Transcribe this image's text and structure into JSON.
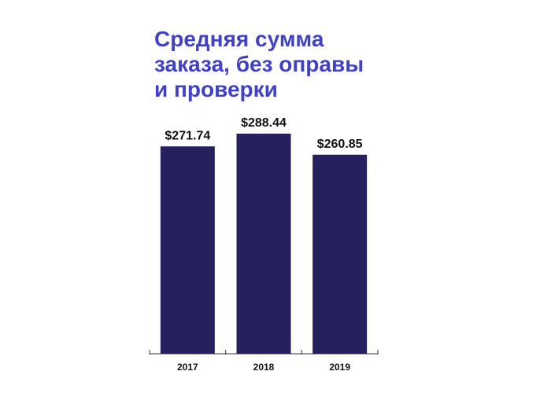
{
  "chart_data": {
    "type": "bar",
    "title": "Средняя сумма заказа, без оправы и проверки",
    "categories": [
      "2017",
      "2018",
      "2019"
    ],
    "values": [
      271.74,
      288.44,
      260.85
    ],
    "value_labels": [
      "$271.74",
      "$288.44",
      "$260.85"
    ],
    "color": "#25215e"
  }
}
